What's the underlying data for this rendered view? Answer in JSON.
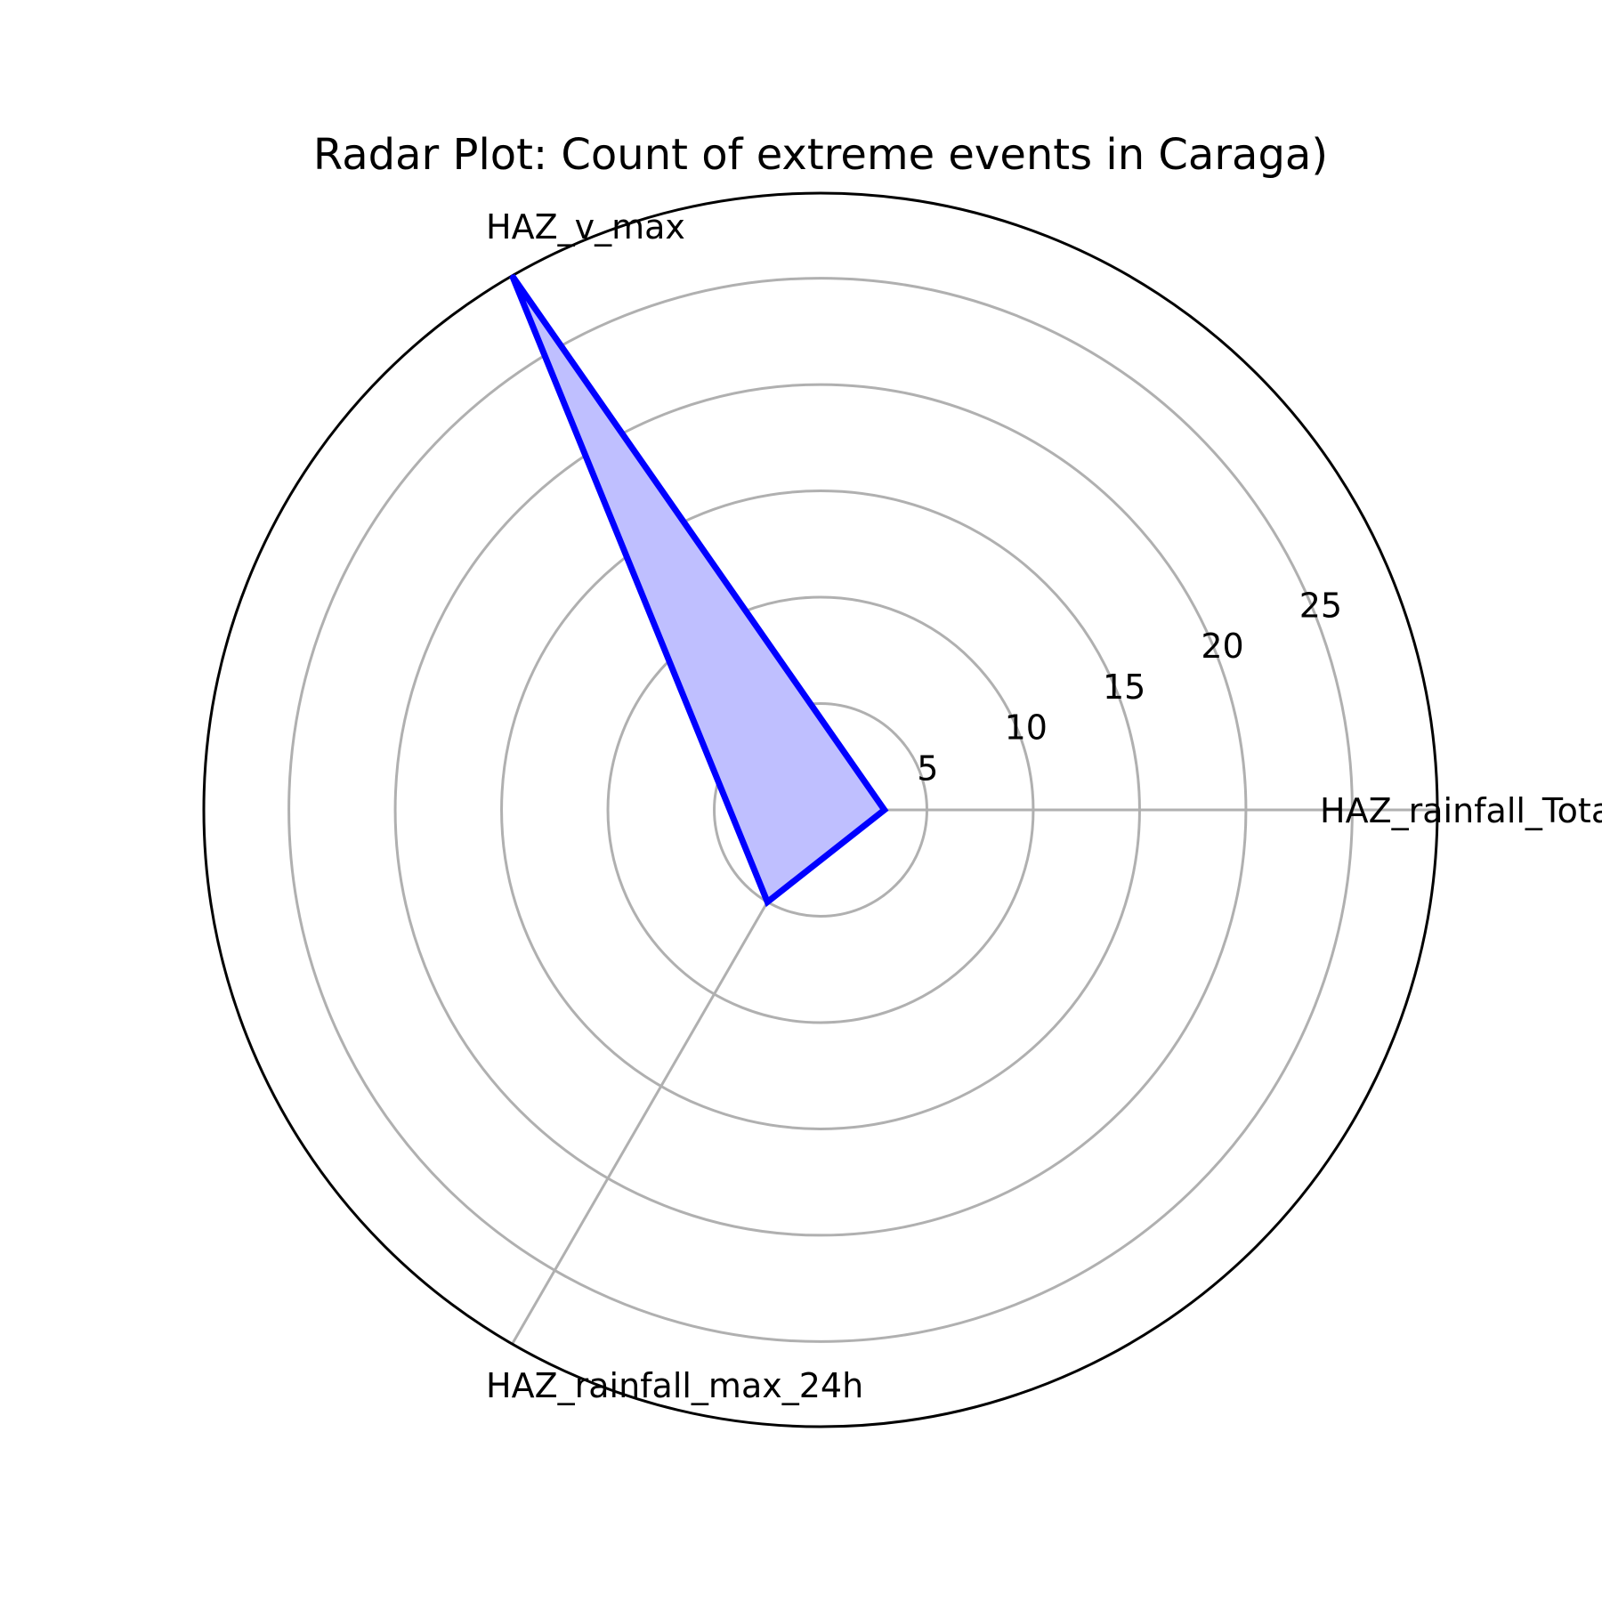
{
  "chart_data": {
    "type": "radar",
    "title": "Radar Plot: Count of extreme events in Caraga)",
    "categories": [
      "HAZ_rainfall_Total",
      "HAZ_v_max",
      "HAZ_rainfall_max_24h"
    ],
    "series": [
      {
        "values": [
          3,
          29,
          5
        ]
      }
    ],
    "r_ticks": [
      5,
      10,
      15,
      20,
      25
    ],
    "r_range": [
      0,
      29
    ],
    "grid": true,
    "line_color": "#0000ff",
    "fill_color": "#bfbfff",
    "grid_color": "#b0b0b0",
    "frame_color": "#000000"
  }
}
